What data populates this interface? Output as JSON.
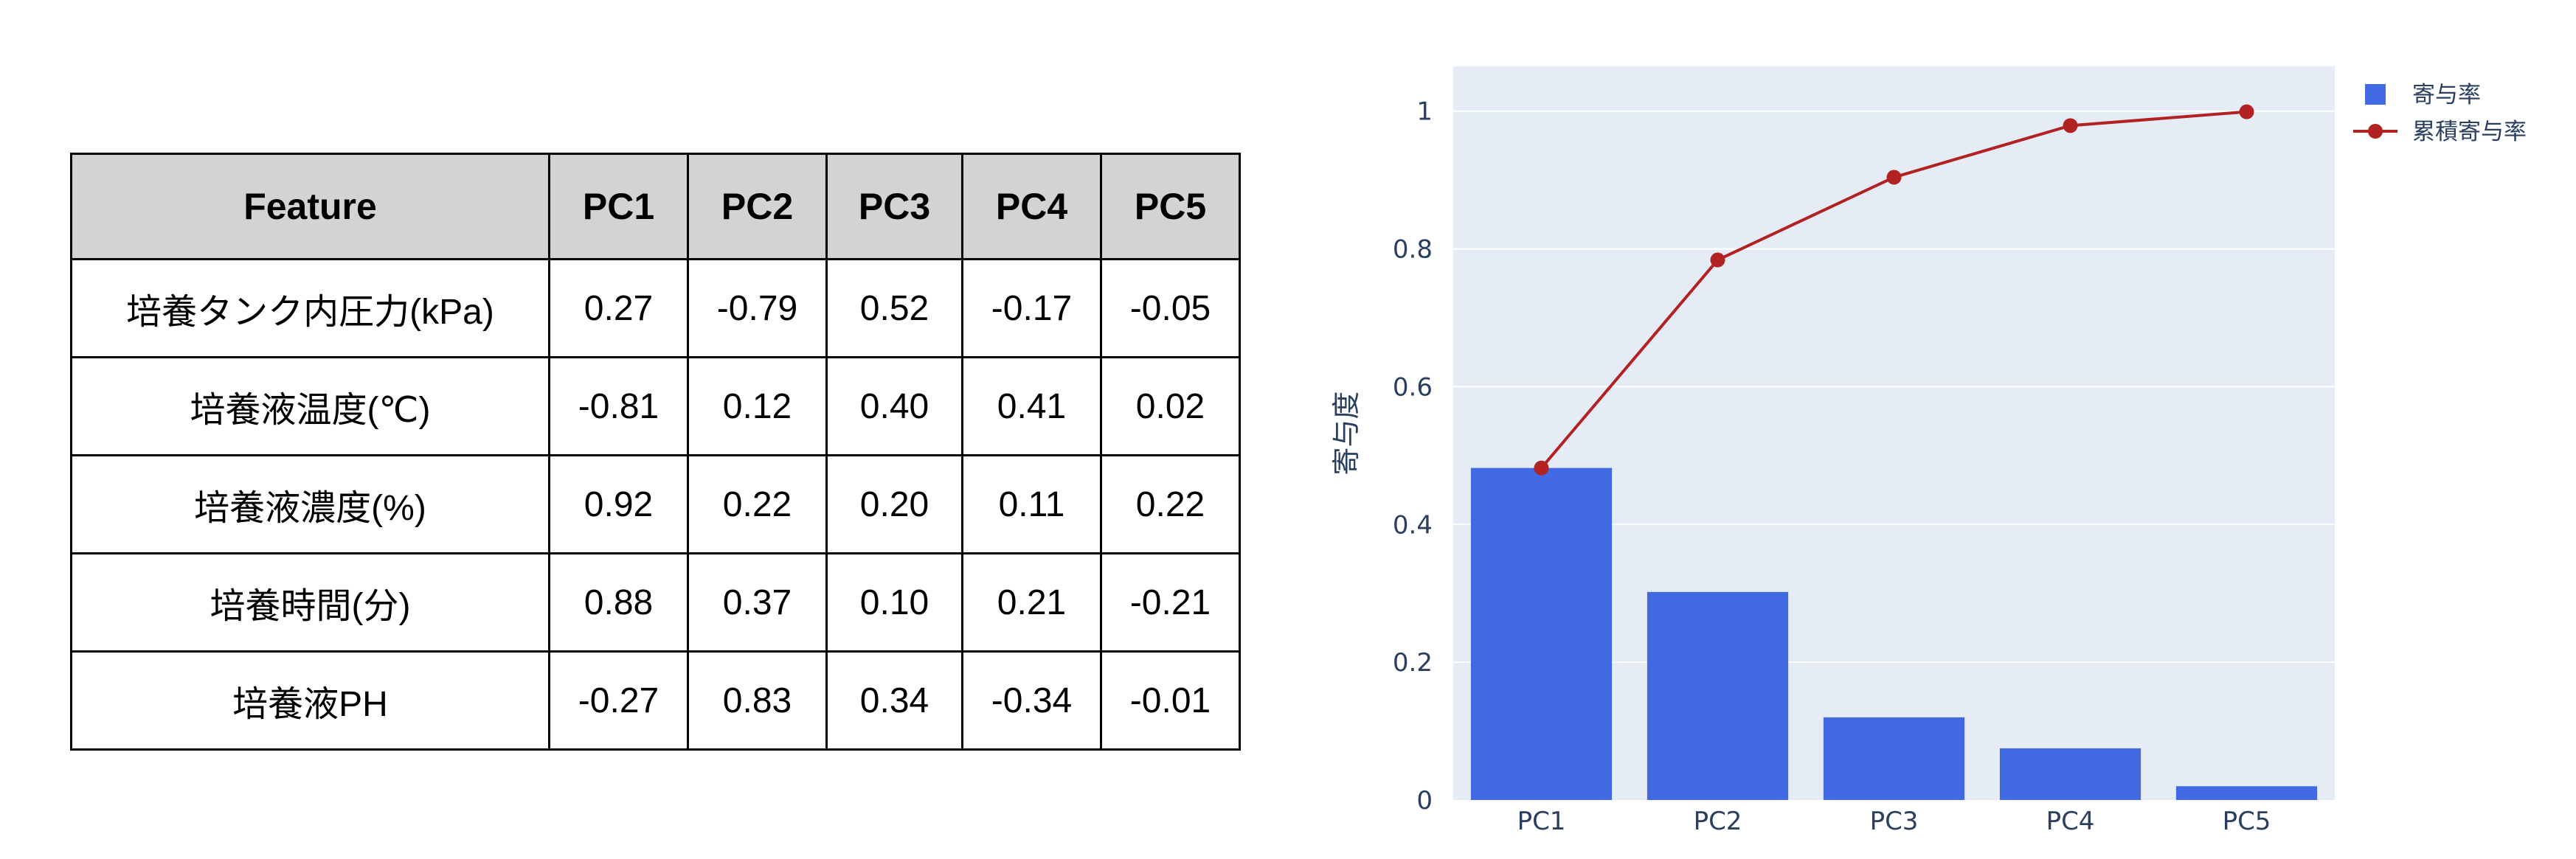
{
  "loadings_table": {
    "headers": [
      "Feature",
      "PC1",
      "PC2",
      "PC3",
      "PC4",
      "PC5"
    ],
    "rows": [
      [
        "培養タンク内圧力(kPa)",
        "0.27",
        "-0.79",
        "0.52",
        "-0.17",
        "-0.05"
      ],
      [
        "培養液温度(℃)",
        "-0.81",
        "0.12",
        "0.40",
        "0.41",
        "0.02"
      ],
      [
        "培養液濃度(%)",
        "0.92",
        "0.22",
        "0.20",
        "0.11",
        "0.22"
      ],
      [
        "培養時間(分)",
        "0.88",
        "0.37",
        "0.10",
        "0.21",
        "-0.21"
      ],
      [
        "培養液PH",
        "-0.27",
        "0.83",
        "0.34",
        "-0.34",
        "-0.01"
      ]
    ],
    "header_bg": "#d3d3d3"
  },
  "chart_data": {
    "type": "bar",
    "title": "",
    "xlabel": "",
    "ylabel": "寄与度",
    "categories": [
      "PC1",
      "PC2",
      "PC3",
      "PC4",
      "PC5"
    ],
    "series": [
      {
        "name": "寄与率",
        "kind": "bar",
        "values": [
          0.482,
          0.302,
          0.12,
          0.075,
          0.02
        ],
        "color": "#4169e1"
      },
      {
        "name": "累積寄与率",
        "kind": "line+markers",
        "values": [
          0.482,
          0.784,
          0.904,
          0.979,
          0.999
        ],
        "color": "#b22222"
      }
    ],
    "ylim": [
      0,
      1.065
    ],
    "yticks": [
      0,
      0.2,
      0.4,
      0.6,
      0.8,
      1
    ],
    "ytick_labels": [
      "0",
      "0.2",
      "0.4",
      "0.6",
      "0.8",
      "1"
    ],
    "grid": true,
    "plot_bg": "#e5ecf6",
    "legend_position": "top-right"
  }
}
